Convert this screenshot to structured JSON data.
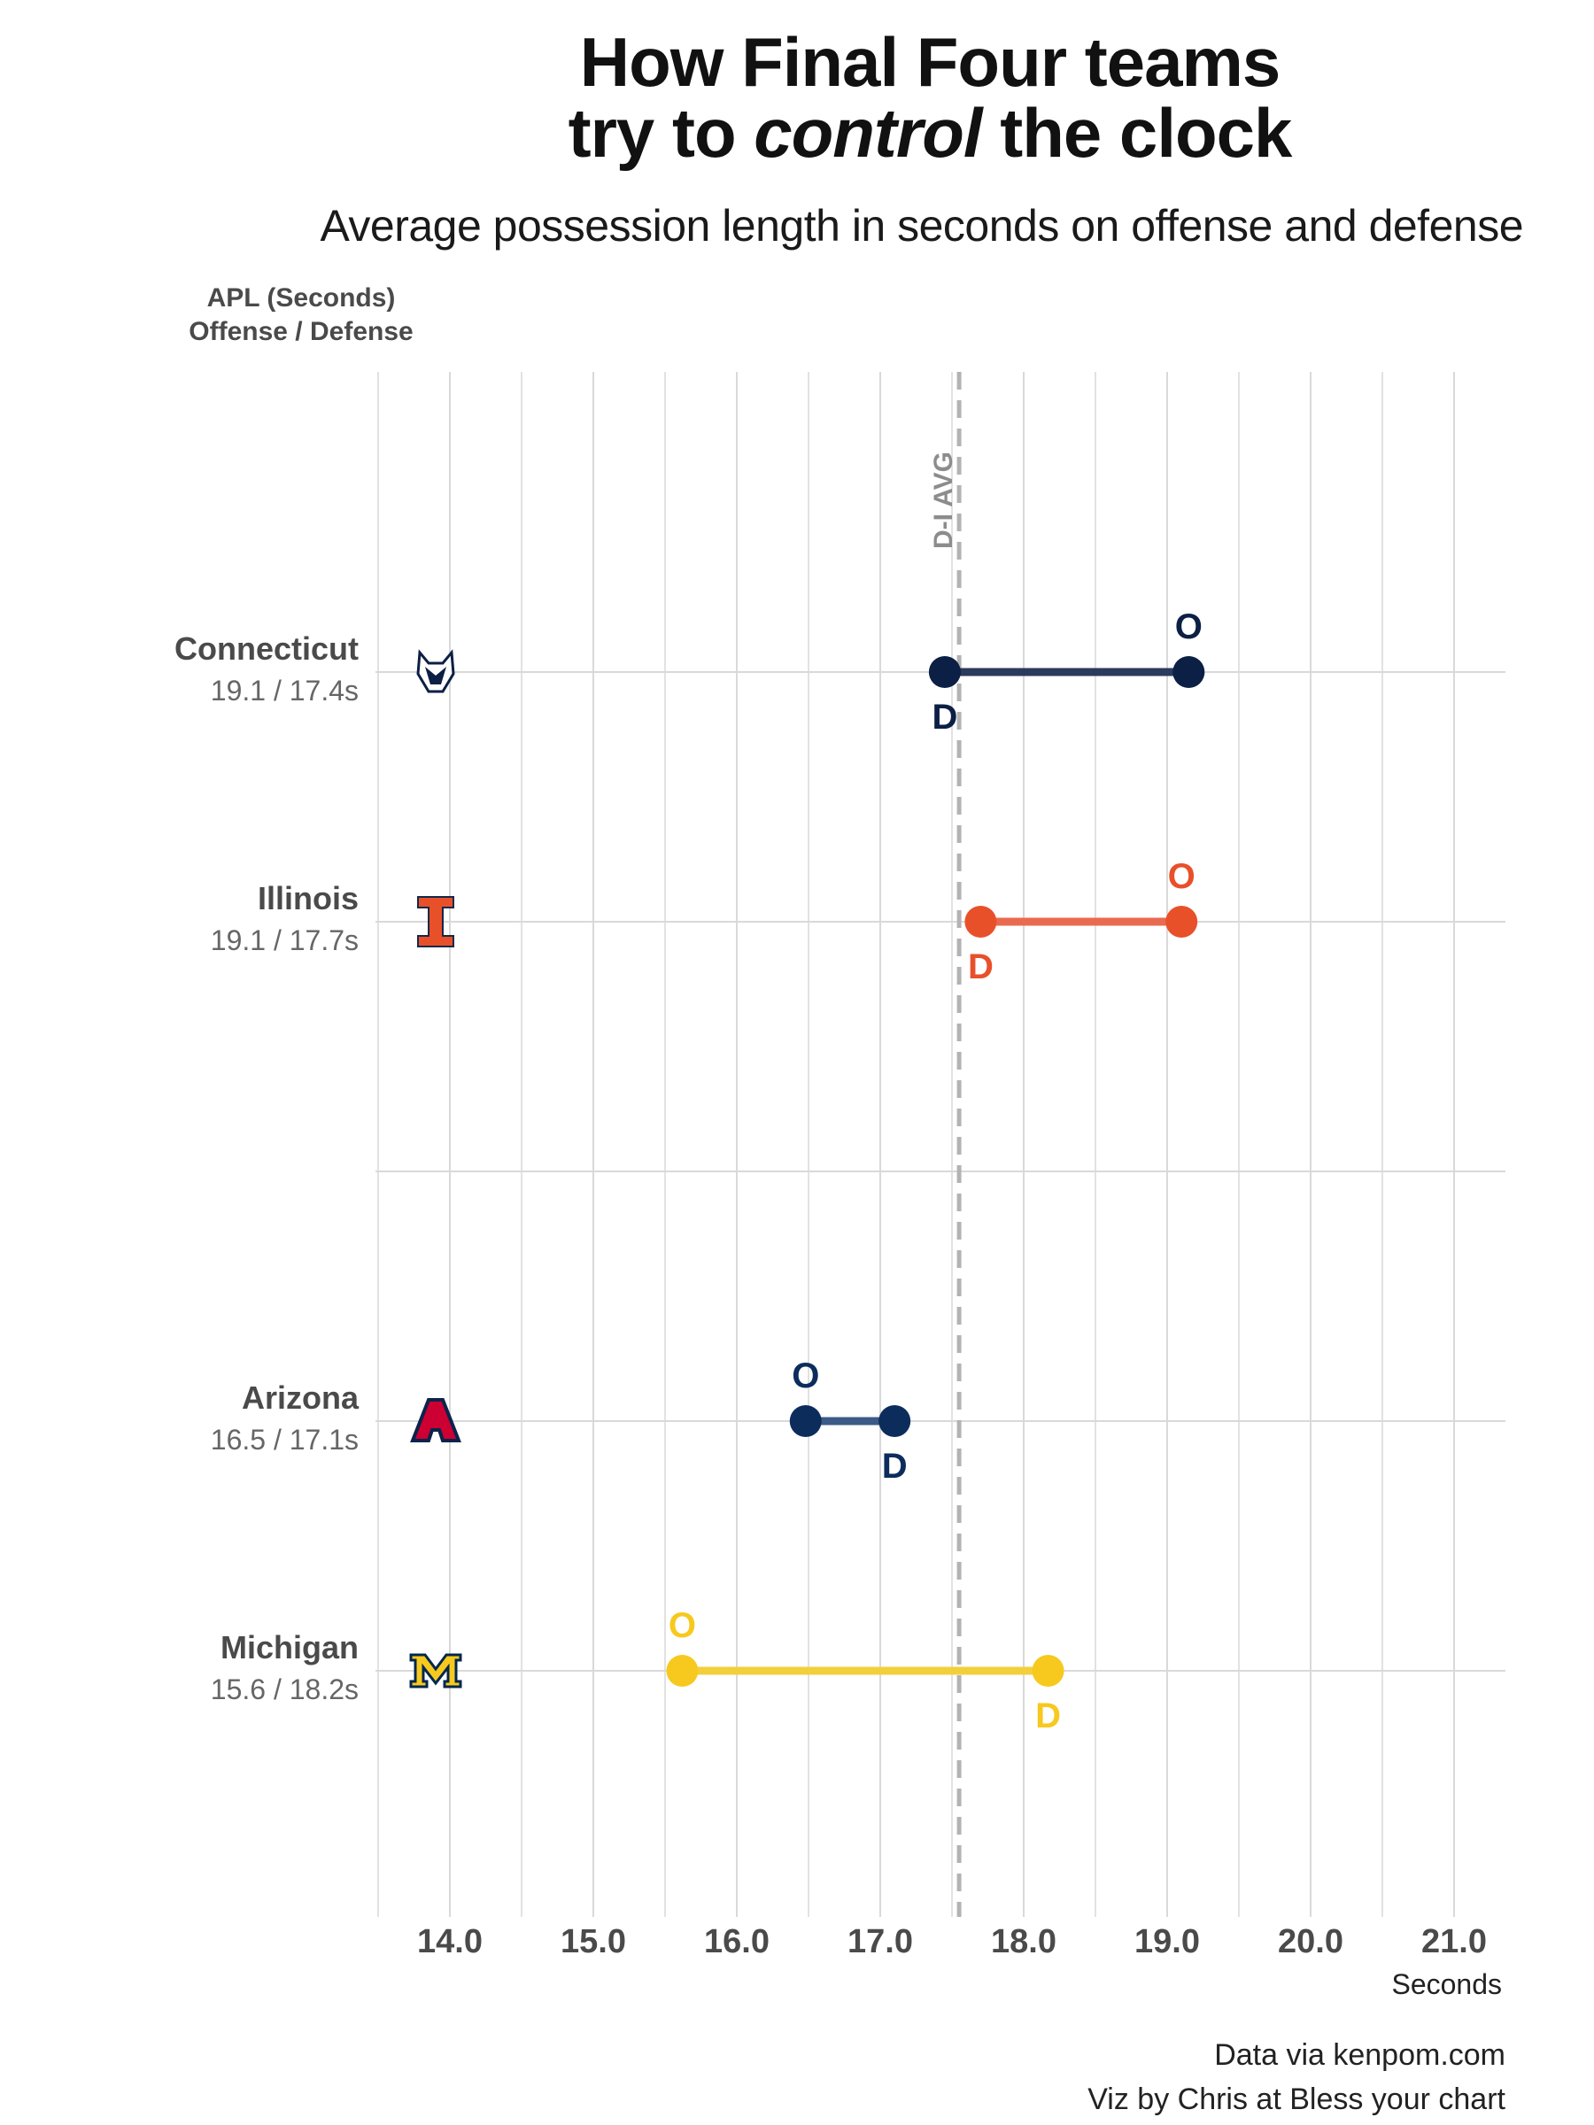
{
  "title": {
    "line1": "How Final Four teams",
    "line2_pre": "try to ",
    "line2_em": "control",
    "line2_post": " the clock"
  },
  "subtitle": "Average possession length in seconds on offense and defense",
  "y_header": {
    "line1": "APL (Seconds)",
    "line2": "Offense / Defense"
  },
  "footer": {
    "line1": "Data via kenpom.com",
    "line2": "Viz by Chris at Bless your chart"
  },
  "chart_data": {
    "type": "dumbbell",
    "xlabel": "Seconds",
    "xlim": [
      13.5,
      21.35
    ],
    "x_ticks": [
      14.0,
      15.0,
      16.0,
      17.0,
      18.0,
      19.0,
      20.0,
      21.0
    ],
    "x_tick_labels": [
      "14.0",
      "15.0",
      "16.0",
      "17.0",
      "18.0",
      "19.0",
      "20.0",
      "21.0"
    ],
    "reference_line": {
      "label": "D-I AVG",
      "value": 17.55
    },
    "point_labels": {
      "offense": "O",
      "defense": "D"
    },
    "teams": [
      {
        "name": "Connecticut",
        "values_label": "19.1 / 17.4s",
        "offense": 19.15,
        "defense": 17.45,
        "color": "#0c1f44",
        "line_color": "#2b3a5e",
        "logo": "husky-head-icon",
        "row": 0
      },
      {
        "name": "Illinois",
        "values_label": "19.1 / 17.7s",
        "offense": 19.1,
        "defense": 17.7,
        "color": "#e8502a",
        "line_color": "#e96a4e",
        "logo": "block-i-icon",
        "row": 1
      },
      {
        "name": "Arizona",
        "values_label": "16.5 / 17.1s",
        "offense": 16.48,
        "defense": 17.1,
        "color": "#0c2d5c",
        "line_color": "#3b5a85",
        "logo": "arizona-a-icon",
        "row": 3
      },
      {
        "name": "Michigan",
        "values_label": "15.6 / 18.2s",
        "offense": 15.62,
        "defense": 18.17,
        "color": "#f7c91e",
        "line_color": "#f4cf3c",
        "logo": "block-m-icon",
        "row": 4
      }
    ]
  }
}
